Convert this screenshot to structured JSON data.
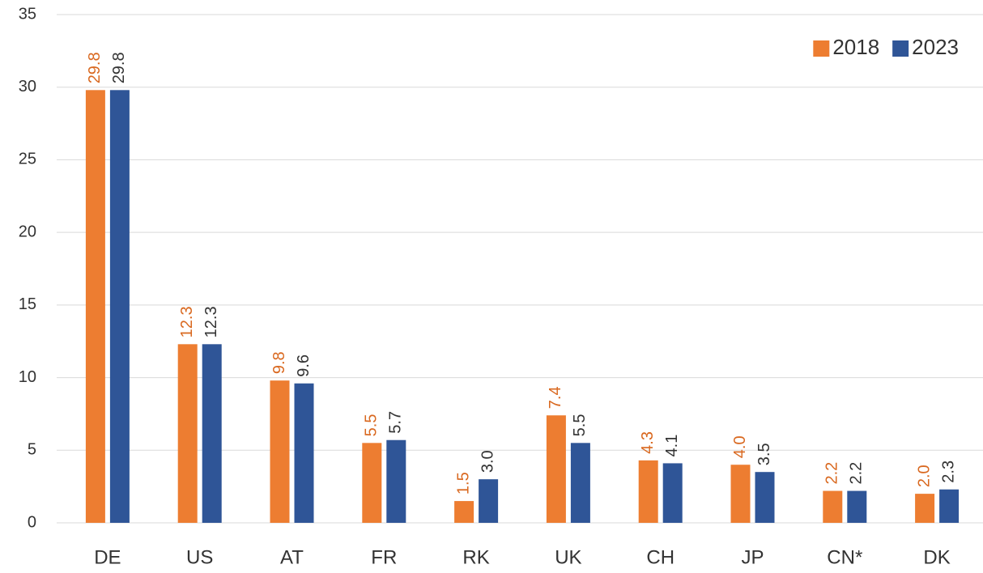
{
  "chart_data": {
    "type": "bar",
    "categories": [
      "DE",
      "US",
      "AT",
      "FR",
      "RK",
      "UK",
      "CH",
      "JP",
      "CN*",
      "DK"
    ],
    "series": [
      {
        "name": "2018",
        "color": "#ed7d31",
        "label_color": "#d9681f",
        "values": [
          29.8,
          12.3,
          9.8,
          5.5,
          1.5,
          7.4,
          4.3,
          4.0,
          2.2,
          2.0
        ],
        "value_labels": [
          "29.8",
          "12.3",
          "9.8",
          "5.5",
          "1.5",
          "7.4",
          "4.3",
          "4.0",
          "2.2",
          "2.0"
        ]
      },
      {
        "name": "2023",
        "color": "#2f5597",
        "label_color": "#333333",
        "values": [
          29.8,
          12.3,
          9.6,
          5.7,
          3.0,
          5.5,
          4.1,
          3.5,
          2.2,
          2.3
        ],
        "value_labels": [
          "29.8",
          "12.3",
          "9.6",
          "5.7",
          "3.0",
          "5.5",
          "4.1",
          "3.5",
          "2.2",
          "2.3"
        ]
      }
    ],
    "ylim": [
      0,
      35
    ],
    "yticks": [
      0,
      5,
      10,
      15,
      20,
      25,
      30,
      35
    ],
    "grid": true,
    "legend": "top-right"
  }
}
